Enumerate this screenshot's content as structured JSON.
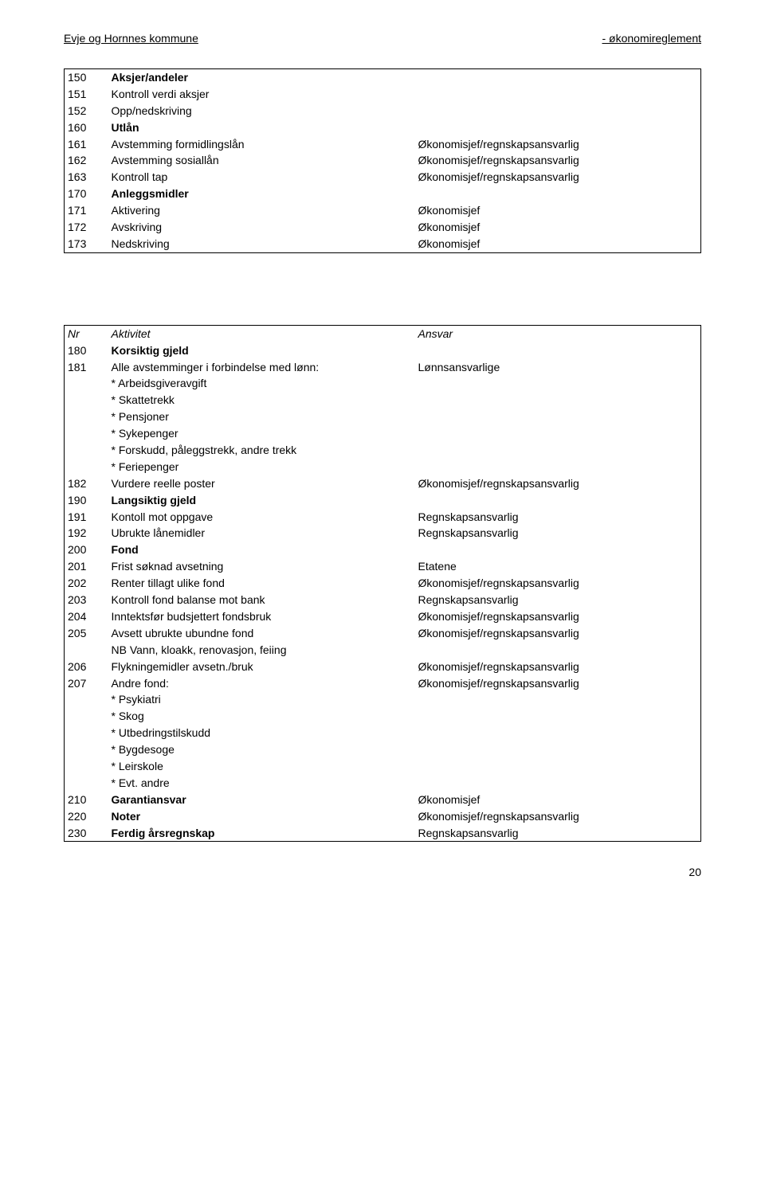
{
  "header": {
    "left": "Evje og Hornnes kommune",
    "right": "- økonomireglement"
  },
  "table1": {
    "rows": [
      {
        "nr": "150",
        "act": "Aksjer/andeler",
        "ans": "",
        "bold": true
      },
      {
        "nr": "151",
        "act": "Kontroll verdi aksjer",
        "ans": ""
      },
      {
        "nr": "152",
        "act": "Opp/nedskriving",
        "ans": ""
      },
      {
        "nr": "160",
        "act": "Utlån",
        "ans": "",
        "bold": true
      },
      {
        "nr": "161",
        "act": "Avstemming formidlingslån",
        "ans": "Økonomisjef/regnskapsansvarlig"
      },
      {
        "nr": "162",
        "act": "Avstemming sosiallån",
        "ans": "Økonomisjef/regnskapsansvarlig"
      },
      {
        "nr": "163",
        "act": "Kontroll tap",
        "ans": "Økonomisjef/regnskapsansvarlig"
      },
      {
        "nr": "170",
        "act": "Anleggsmidler",
        "ans": "",
        "bold": true
      },
      {
        "nr": "171",
        "act": "Aktivering",
        "ans": "Økonomisjef"
      },
      {
        "nr": "172",
        "act": "Avskriving",
        "ans": "Økonomisjef"
      },
      {
        "nr": "173",
        "act": "Nedskriving",
        "ans": "Økonomisjef"
      }
    ]
  },
  "table2": {
    "header": {
      "nr": "Nr",
      "act": "Aktivitet",
      "ans": "Ansvar"
    },
    "rows": [
      {
        "nr": "180",
        "act": "Korsiktig gjeld",
        "ans": "",
        "bold": true
      },
      {
        "nr": "181",
        "act": "Alle avstemminger i forbindelse med lønn:",
        "ans": "Lønnsansvarlige"
      },
      {
        "nr": "",
        "act": "* Arbeidsgiveravgift",
        "ans": ""
      },
      {
        "nr": "",
        "act": "* Skattetrekk",
        "ans": ""
      },
      {
        "nr": "",
        "act": "* Pensjoner",
        "ans": ""
      },
      {
        "nr": "",
        "act": "* Sykepenger",
        "ans": ""
      },
      {
        "nr": "",
        "act": "* Forskudd, påleggstrekk, andre trekk",
        "ans": ""
      },
      {
        "nr": "",
        "act": "* Feriepenger",
        "ans": ""
      },
      {
        "nr": "182",
        "act": "Vurdere reelle poster",
        "ans": "Økonomisjef/regnskapsansvarlig"
      },
      {
        "nr": "190",
        "act": "Langsiktig gjeld",
        "ans": "",
        "bold": true
      },
      {
        "nr": "191",
        "act": "Kontoll mot oppgave",
        "ans": "Regnskapsansvarlig"
      },
      {
        "nr": "192",
        "act": "Ubrukte lånemidler",
        "ans": "Regnskapsansvarlig"
      },
      {
        "nr": "200",
        "act": "Fond",
        "ans": "",
        "bold": true
      },
      {
        "nr": "201",
        "act": "Frist søknad avsetning",
        "ans": "Etatene"
      },
      {
        "nr": "202",
        "act": "Renter tillagt ulike fond",
        "ans": "Økonomisjef/regnskapsansvarlig"
      },
      {
        "nr": "203",
        "act": "Kontroll fond balanse mot bank",
        "ans": "Regnskapsansvarlig"
      },
      {
        "nr": "204",
        "act": "Inntektsfør budsjettert fondsbruk",
        "ans": "Økonomisjef/regnskapsansvarlig"
      },
      {
        "nr": "205",
        "act": "Avsett ubrukte ubundne fond",
        "ans": "Økonomisjef/regnskapsansvarlig"
      },
      {
        "nr": "",
        "act": "NB Vann, kloakk, renovasjon, feiing",
        "ans": ""
      },
      {
        "nr": "206",
        "act": "Flykningemidler avsetn./bruk",
        "ans": "Økonomisjef/regnskapsansvarlig"
      },
      {
        "nr": "207",
        "act": "Andre fond:",
        "ans": "Økonomisjef/regnskapsansvarlig"
      },
      {
        "nr": "",
        "act": "* Psykiatri",
        "ans": ""
      },
      {
        "nr": "",
        "act": "* Skog",
        "ans": ""
      },
      {
        "nr": "",
        "act": "* Utbedringstilskudd",
        "ans": ""
      },
      {
        "nr": "",
        "act": "* Bygdesoge",
        "ans": ""
      },
      {
        "nr": "",
        "act": "* Leirskole",
        "ans": ""
      },
      {
        "nr": "",
        "act": "* Evt. andre",
        "ans": ""
      },
      {
        "nr": "210",
        "act": "Garantiansvar",
        "ans": "Økonomisjef",
        "bold": true,
        "ansBold": false
      },
      {
        "nr": "220",
        "act": "Noter",
        "ans": "Økonomisjef/regnskapsansvarlig",
        "bold": true,
        "ansBold": false
      },
      {
        "nr": "230",
        "act": "Ferdig årsregnskap",
        "ans": "Regnskapsansvarlig",
        "bold": true,
        "ansBold": false
      }
    ]
  },
  "pageNumber": "20"
}
